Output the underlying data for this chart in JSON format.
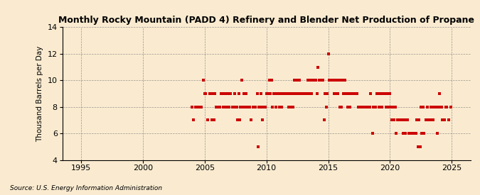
{
  "title": "Monthly Rocky Mountain (PADD 4) Refinery and Blender Net Production of Propane",
  "ylabel": "Thousand Barrels per Day",
  "source": "Source: U.S. Energy Information Administration",
  "background_color": "#faebd0",
  "dot_color": "#cc0000",
  "xlim": [
    1993.5,
    2026.5
  ],
  "ylim": [
    4,
    14
  ],
  "yticks": [
    4,
    6,
    8,
    10,
    12,
    14
  ],
  "xticks": [
    1995,
    2000,
    2005,
    2010,
    2015,
    2020,
    2025
  ],
  "data_points": [
    [
      2004.083,
      7
    ],
    [
      2004.25,
      8
    ],
    [
      2004.417,
      8
    ],
    [
      2004.583,
      8
    ],
    [
      2004.75,
      8
    ],
    [
      2004.917,
      10
    ],
    [
      2005.083,
      9
    ],
    [
      2005.25,
      7
    ],
    [
      2005.417,
      9
    ],
    [
      2005.583,
      7
    ],
    [
      2005.75,
      7
    ],
    [
      2005.917,
      8
    ],
    [
      2006.083,
      8
    ],
    [
      2006.25,
      8
    ],
    [
      2006.417,
      9
    ],
    [
      2006.583,
      9
    ],
    [
      2006.75,
      8
    ],
    [
      2006.917,
      9
    ],
    [
      2007.083,
      9
    ],
    [
      2007.25,
      8
    ],
    [
      2007.417,
      9
    ],
    [
      2007.583,
      8
    ],
    [
      2007.75,
      9
    ],
    [
      2007.917,
      8
    ],
    [
      2008.083,
      8
    ],
    [
      2008.25,
      8
    ],
    [
      2008.417,
      8
    ],
    [
      2008.583,
      8
    ],
    [
      2008.75,
      7
    ],
    [
      2008.917,
      8
    ],
    [
      2009.083,
      8
    ],
    [
      2009.25,
      9
    ],
    [
      2009.417,
      8
    ],
    [
      2009.583,
      9
    ],
    [
      2009.75,
      8
    ],
    [
      2009.917,
      8
    ],
    [
      2010.083,
      9
    ],
    [
      2010.25,
      10
    ],
    [
      2010.417,
      10
    ],
    [
      2010.583,
      9
    ],
    [
      2010.75,
      8
    ],
    [
      2010.917,
      9
    ],
    [
      2011.083,
      8
    ],
    [
      2011.25,
      8
    ],
    [
      2011.417,
      9
    ],
    [
      2011.583,
      9
    ],
    [
      2011.75,
      9
    ],
    [
      2011.917,
      9
    ],
    [
      2012.083,
      9
    ],
    [
      2012.25,
      10
    ],
    [
      2012.417,
      10
    ],
    [
      2012.583,
      9
    ],
    [
      2012.75,
      9
    ],
    [
      2012.917,
      9
    ],
    [
      2013.083,
      9
    ],
    [
      2013.25,
      9
    ],
    [
      2013.417,
      9
    ],
    [
      2013.583,
      10
    ],
    [
      2013.75,
      10
    ],
    [
      2013.917,
      10
    ],
    [
      2014.083,
      9
    ],
    [
      2014.25,
      10
    ],
    [
      2014.417,
      10
    ],
    [
      2014.583,
      10
    ],
    [
      2014.75,
      9
    ],
    [
      2014.917,
      9
    ],
    [
      2015.083,
      10
    ],
    [
      2015.25,
      10
    ],
    [
      2015.417,
      10
    ],
    [
      2015.583,
      9
    ],
    [
      2015.75,
      9
    ],
    [
      2015.917,
      8
    ],
    [
      2016.083,
      8
    ],
    [
      2016.25,
      9
    ],
    [
      2016.417,
      9
    ],
    [
      2016.583,
      8
    ],
    [
      2016.75,
      8
    ],
    [
      2016.917,
      9
    ],
    [
      2017.083,
      9
    ],
    [
      2017.25,
      9
    ],
    [
      2017.417,
      8
    ],
    [
      2017.583,
      8
    ],
    [
      2017.75,
      8
    ],
    [
      2017.917,
      8
    ],
    [
      2018.083,
      8
    ],
    [
      2018.25,
      8
    ],
    [
      2018.417,
      9
    ],
    [
      2018.583,
      6
    ],
    [
      2018.75,
      8
    ],
    [
      2018.917,
      9
    ],
    [
      2019.083,
      8
    ],
    [
      2019.25,
      8
    ],
    [
      2019.417,
      9
    ],
    [
      2019.583,
      9
    ],
    [
      2019.75,
      9
    ],
    [
      2019.917,
      9
    ],
    [
      2020.083,
      8
    ],
    [
      2020.25,
      8
    ],
    [
      2020.417,
      8
    ],
    [
      2020.583,
      7
    ],
    [
      2020.75,
      7
    ],
    [
      2020.917,
      7
    ],
    [
      2021.083,
      6
    ],
    [
      2021.25,
      6
    ],
    [
      2021.417,
      7
    ],
    [
      2021.583,
      6
    ],
    [
      2021.75,
      6
    ],
    [
      2021.917,
      6
    ],
    [
      2022.083,
      6
    ],
    [
      2022.25,
      5
    ],
    [
      2022.417,
      5
    ],
    [
      2022.583,
      6
    ],
    [
      2022.75,
      6
    ],
    [
      2022.917,
      7
    ],
    [
      2023.083,
      7
    ],
    [
      2023.25,
      7
    ],
    [
      2023.417,
      8
    ],
    [
      2023.583,
      8
    ],
    [
      2023.75,
      8
    ],
    [
      2023.917,
      8
    ],
    [
      2024.083,
      8
    ],
    [
      2024.25,
      7
    ],
    [
      2024.417,
      7
    ],
    [
      2024.583,
      8
    ],
    [
      2024.75,
      7
    ],
    [
      2024.917,
      8
    ],
    [
      2004.0,
      8
    ],
    [
      2005.0,
      9
    ],
    [
      2006.0,
      8
    ],
    [
      2007.0,
      8
    ],
    [
      2008.0,
      10
    ],
    [
      2009.0,
      8
    ],
    [
      2010.0,
      9
    ],
    [
      2011.0,
      9
    ],
    [
      2012.0,
      8
    ],
    [
      2013.0,
      9
    ],
    [
      2014.0,
      10
    ],
    [
      2015.0,
      12
    ],
    [
      2016.0,
      10
    ],
    [
      2017.0,
      9
    ],
    [
      2018.0,
      8
    ],
    [
      2019.0,
      9
    ],
    [
      2020.0,
      9
    ],
    [
      2021.0,
      7
    ],
    [
      2022.0,
      6
    ],
    [
      2023.0,
      8
    ],
    [
      2024.0,
      9
    ],
    [
      2014.167,
      11
    ],
    [
      2014.333,
      10
    ],
    [
      2014.5,
      10
    ],
    [
      2014.667,
      7
    ],
    [
      2014.833,
      8
    ],
    [
      2015.167,
      10
    ],
    [
      2015.333,
      10
    ],
    [
      2015.5,
      9
    ],
    [
      2015.667,
      10
    ],
    [
      2015.833,
      10
    ],
    [
      2009.333,
      5
    ],
    [
      2009.583,
      8
    ],
    [
      2009.667,
      7
    ],
    [
      2005.5,
      9
    ],
    [
      2005.667,
      9
    ],
    [
      2005.833,
      9
    ],
    [
      2006.333,
      9
    ],
    [
      2006.5,
      8
    ],
    [
      2006.667,
      9
    ],
    [
      2007.333,
      8
    ],
    [
      2007.5,
      8
    ],
    [
      2007.667,
      7
    ],
    [
      2007.833,
      7
    ],
    [
      2008.167,
      9
    ],
    [
      2008.333,
      9
    ],
    [
      2008.5,
      8
    ],
    [
      2008.667,
      8
    ],
    [
      2010.167,
      9
    ],
    [
      2010.333,
      9
    ],
    [
      2010.5,
      8
    ],
    [
      2010.667,
      9
    ],
    [
      2010.833,
      9
    ],
    [
      2011.167,
      9
    ],
    [
      2011.333,
      9
    ],
    [
      2011.5,
      9
    ],
    [
      2011.667,
      9
    ],
    [
      2011.833,
      8
    ],
    [
      2012.167,
      8
    ],
    [
      2012.333,
      9
    ],
    [
      2012.5,
      9
    ],
    [
      2012.667,
      10
    ],
    [
      2012.833,
      9
    ],
    [
      2013.167,
      9
    ],
    [
      2013.333,
      10
    ],
    [
      2013.5,
      10
    ],
    [
      2013.667,
      9
    ],
    [
      2013.833,
      10
    ],
    [
      2016.167,
      10
    ],
    [
      2016.333,
      10
    ],
    [
      2016.5,
      9
    ],
    [
      2016.667,
      9
    ],
    [
      2016.833,
      9
    ],
    [
      2017.167,
      9
    ],
    [
      2017.333,
      9
    ],
    [
      2017.5,
      8
    ],
    [
      2017.667,
      8
    ],
    [
      2017.833,
      8
    ],
    [
      2018.167,
      8
    ],
    [
      2018.333,
      8
    ],
    [
      2018.667,
      8
    ],
    [
      2018.833,
      8
    ],
    [
      2019.167,
      9
    ],
    [
      2019.333,
      8
    ],
    [
      2019.5,
      9
    ],
    [
      2019.667,
      8
    ],
    [
      2019.833,
      8
    ],
    [
      2020.167,
      7
    ],
    [
      2020.333,
      7
    ],
    [
      2020.5,
      6
    ],
    [
      2020.667,
      7
    ],
    [
      2020.833,
      7
    ],
    [
      2021.167,
      7
    ],
    [
      2021.333,
      7
    ],
    [
      2021.5,
      6
    ],
    [
      2021.667,
      6
    ],
    [
      2022.167,
      7
    ],
    [
      2022.333,
      7
    ],
    [
      2022.5,
      8
    ],
    [
      2022.667,
      8
    ],
    [
      2023.167,
      7
    ],
    [
      2023.333,
      8
    ],
    [
      2023.5,
      7
    ],
    [
      2023.667,
      8
    ],
    [
      2023.833,
      6
    ],
    [
      2024.167,
      8
    ],
    [
      2024.333,
      7
    ],
    [
      2024.5,
      8
    ]
  ]
}
